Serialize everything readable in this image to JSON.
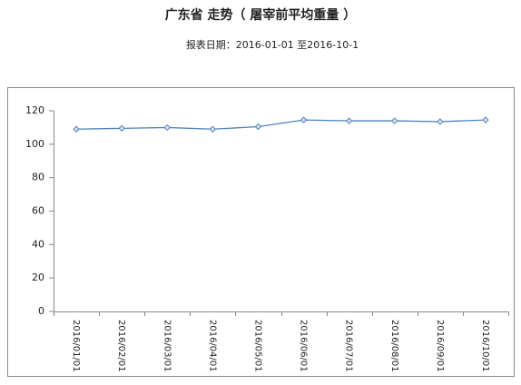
{
  "chart_data": {
    "type": "line",
    "title": "广东省  走势（  屠宰前平均重量  ）",
    "subtitle": "报表日期：2016-01-01 至2016-10-1",
    "categories": [
      "2016/01/01",
      "2016/02/01",
      "2016/03/01",
      "2016/04/01",
      "2016/05/01",
      "2016/06/01",
      "2016/07/01",
      "2016/08/01",
      "2016/09/01",
      "2016/10/01"
    ],
    "values": [
      109,
      109.5,
      110,
      109,
      110.5,
      114.5,
      114,
      114,
      113.5,
      114.5
    ],
    "color": "#4f81bd",
    "ylim": [
      0,
      120
    ],
    "yticks": [
      0,
      20,
      40,
      60,
      80,
      100,
      120
    ],
    "grid": false
  }
}
